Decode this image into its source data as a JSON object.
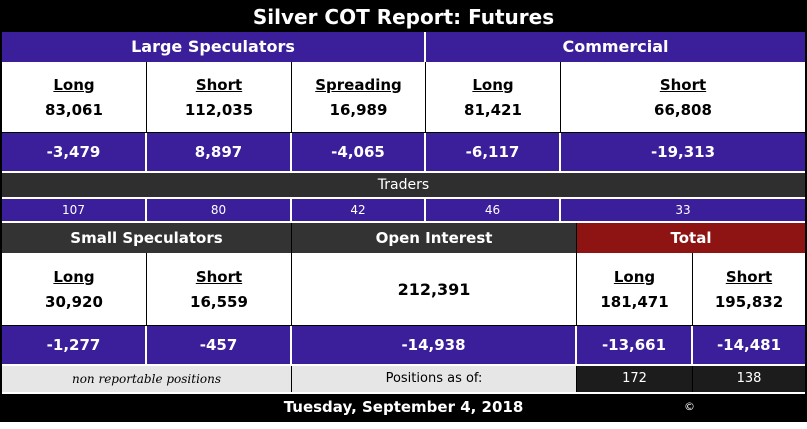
{
  "title": "Silver COT Report: Futures",
  "top": {
    "groups": {
      "large_speculators": "Large Speculators",
      "commercial": "Commercial"
    },
    "headers": [
      "Long",
      "Short",
      "Spreading",
      "Long",
      "Short"
    ],
    "values": [
      "83,061",
      "112,035",
      "16,989",
      "81,421",
      "66,808"
    ],
    "changes": [
      "-3,479",
      "8,897",
      "-4,065",
      "-6,117",
      "-19,313"
    ]
  },
  "traders": {
    "label": "Traders",
    "counts": [
      "107",
      "80",
      "42",
      "46",
      "33"
    ]
  },
  "bottom": {
    "sections": {
      "small_speculators": "Small Speculators",
      "open_interest": "Open Interest",
      "total": "Total"
    },
    "small": {
      "headers": [
        "Long",
        "Short"
      ],
      "values": [
        "30,920",
        "16,559"
      ],
      "changes": [
        "-1,277",
        "-457"
      ]
    },
    "open_interest": {
      "value": "212,391",
      "change": "-14,938"
    },
    "total": {
      "headers": [
        "Long",
        "Short"
      ],
      "values": [
        "181,471",
        "195,832"
      ],
      "changes": [
        "-13,661",
        "-14,481"
      ],
      "trader_counts": [
        "172",
        "138"
      ]
    },
    "non_reportable": "non reportable positions",
    "positions_as_of": "Positions as of:"
  },
  "footer": {
    "date": "Tuesday, September 4, 2018",
    "copyright": "©"
  },
  "colors": {
    "purple": "#3B1E99",
    "dark_gray": "#333333",
    "dark_red": "#8E1313",
    "black": "#000000",
    "cell_gray": "#D6D6D6",
    "light_gray": "#E6E6E6"
  },
  "chart_data": {
    "type": "table",
    "title": "Silver COT Report: Futures",
    "as_of": "Tuesday, September 4, 2018",
    "groups": {
      "large_speculators": {
        "long": 83061,
        "short": 112035,
        "spreading": 16989,
        "change_long": -3479,
        "change_short": 8897,
        "change_spreading": -4065,
        "traders_long": 107,
        "traders_short": 80,
        "traders_spreading": 42
      },
      "commercial": {
        "long": 81421,
        "short": 66808,
        "change_long": -6117,
        "change_short": -19313,
        "traders_long": 46,
        "traders_short": 33
      },
      "small_speculators": {
        "long": 30920,
        "short": 16559,
        "change_long": -1277,
        "change_short": -457
      },
      "total": {
        "long": 181471,
        "short": 195832,
        "change_long": -13661,
        "change_short": -14481,
        "traders_long": 172,
        "traders_short": 138
      },
      "open_interest": {
        "value": 212391,
        "change": -14938
      }
    }
  }
}
